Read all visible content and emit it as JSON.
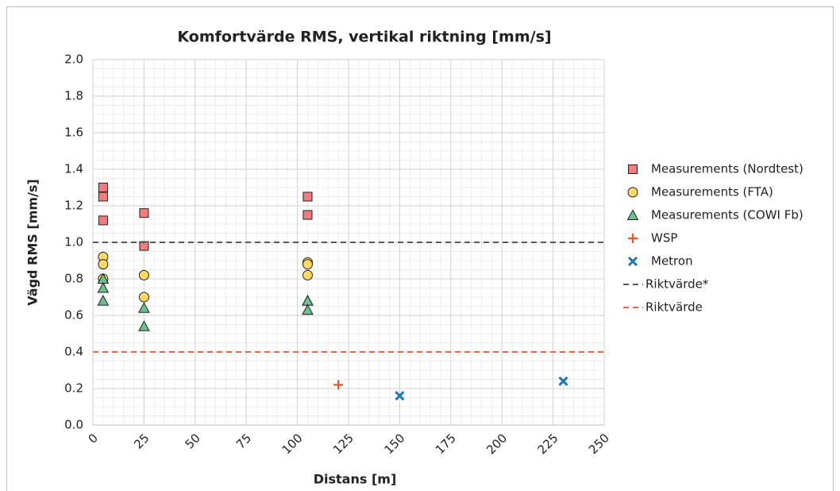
{
  "chart_data": {
    "type": "scatter",
    "title": "Komfortvärde RMS, vertikal riktning [mm/s]",
    "x_label": "Distans [m]",
    "y_label": "Vägd RMS [mm/s]",
    "xlim": [
      0,
      250
    ],
    "xticks": [
      0,
      25,
      50,
      75,
      100,
      125,
      150,
      175,
      200,
      225,
      250
    ],
    "ylim": [
      0,
      2
    ],
    "yticks": [
      {
        "value": 0,
        "label": "0.0"
      },
      {
        "value": 0.2,
        "label": "0.2"
      },
      {
        "value": 0.4,
        "label": "0.4"
      },
      {
        "value": 0.6,
        "label": "0.6"
      },
      {
        "value": 0.8,
        "label": "0.8"
      },
      {
        "value": 1,
        "label": "1.0"
      },
      {
        "value": 1.2,
        "label": "1.2"
      },
      {
        "value": 1.4,
        "label": "1.4"
      },
      {
        "value": 1.6,
        "label": "1.6"
      },
      {
        "value": 1.8,
        "label": "1.8"
      },
      {
        "value": 2,
        "label": "2.0"
      }
    ],
    "grid": true,
    "legend": "right",
    "series": [
      {
        "name": "Measurements (Nordtest)",
        "marker": "square",
        "color": "#f47c7e",
        "x": [
          5,
          5,
          5,
          25,
          25,
          105,
          105,
          105
        ],
        "values": [
          1.3,
          1.25,
          1.12,
          1.16,
          0.98,
          1.25,
          1.25,
          1.15
        ]
      },
      {
        "name": "Measurements (FTA)",
        "marker": "circle",
        "color": "#ffd966",
        "x": [
          5,
          5,
          5,
          25,
          25,
          105,
          105,
          105
        ],
        "values": [
          0.92,
          0.88,
          0.8,
          0.82,
          0.7,
          0.89,
          0.88,
          0.82
        ]
      },
      {
        "name": "Measurements (COWI Fb)",
        "marker": "triangle",
        "color": "#6cc08b",
        "x": [
          5,
          5,
          5,
          25,
          25,
          105,
          105,
          105
        ],
        "values": [
          0.8,
          0.75,
          0.68,
          0.64,
          0.54,
          0.68,
          0.68,
          0.63
        ]
      },
      {
        "name": "WSP",
        "marker": "plus",
        "color": "#f4511e",
        "x": [
          120
        ],
        "values": [
          0.22
        ]
      },
      {
        "name": "Metron",
        "marker": "cross",
        "color": "#1f77b4",
        "x": [
          150,
          230
        ],
        "values": [
          0.16,
          0.24
        ]
      },
      {
        "name": "Riktvärde*",
        "marker": "dash",
        "color": "#595959",
        "x": [
          0,
          250
        ],
        "values": [
          1.0,
          1.0
        ]
      },
      {
        "name": "Riktvärde",
        "marker": "dash",
        "color": "#f0643c",
        "x": [
          0,
          250
        ],
        "values": [
          0.4,
          0.4
        ]
      }
    ]
  }
}
